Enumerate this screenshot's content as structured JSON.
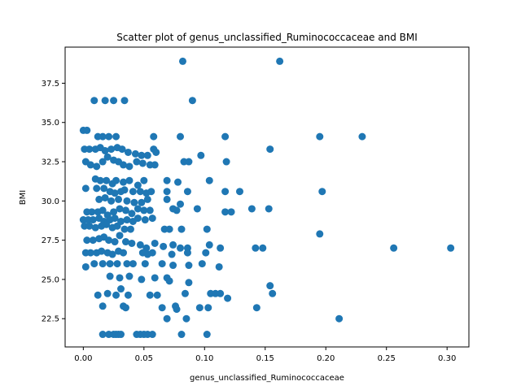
{
  "chart_data": {
    "type": "scatter",
    "title": "Scatter plot of genus_unclassified_Ruminococcaceae and BMI",
    "xlabel": "genus_unclassified_Ruminococcaceae",
    "ylabel": "BMI",
    "xlim": [
      -0.015,
      0.318
    ],
    "ylim": [
      20.7,
      39.8
    ],
    "xticks": [
      0.0,
      0.05,
      0.1,
      0.15,
      0.2,
      0.25,
      0.3
    ],
    "xtick_labels": [
      "0.00",
      "0.05",
      "0.10",
      "0.15",
      "0.20",
      "0.25",
      "0.30"
    ],
    "yticks": [
      22.5,
      25.0,
      27.5,
      30.0,
      32.5,
      35.0,
      37.5
    ],
    "ytick_labels": [
      "22.5",
      "25.0",
      "27.5",
      "30.0",
      "32.5",
      "35.0",
      "37.5"
    ],
    "grid": false,
    "marker_color": "#1f77b4",
    "points": [
      [
        0.082,
        38.9
      ],
      [
        0.162,
        38.9
      ],
      [
        0.009,
        36.4
      ],
      [
        0.018,
        36.4
      ],
      [
        0.025,
        36.4
      ],
      [
        0.034,
        36.4
      ],
      [
        0.09,
        36.4
      ],
      [
        0.0,
        34.5
      ],
      [
        0.003,
        34.5
      ],
      [
        0.012,
        34.1
      ],
      [
        0.016,
        34.1
      ],
      [
        0.021,
        34.1
      ],
      [
        0.027,
        34.1
      ],
      [
        0.058,
        34.1
      ],
      [
        0.08,
        34.1
      ],
      [
        0.117,
        34.1
      ],
      [
        0.195,
        34.1
      ],
      [
        0.23,
        34.1
      ],
      [
        0.001,
        33.3
      ],
      [
        0.005,
        33.3
      ],
      [
        0.01,
        33.3
      ],
      [
        0.014,
        33.4
      ],
      [
        0.018,
        33.2
      ],
      [
        0.023,
        33.3
      ],
      [
        0.028,
        33.4
      ],
      [
        0.032,
        33.3
      ],
      [
        0.037,
        33.1
      ],
      [
        0.043,
        33.0
      ],
      [
        0.048,
        32.9
      ],
      [
        0.053,
        32.9
      ],
      [
        0.058,
        33.3
      ],
      [
        0.06,
        33.1
      ],
      [
        0.097,
        32.9
      ],
      [
        0.154,
        33.3
      ],
      [
        0.002,
        32.5
      ],
      [
        0.006,
        32.3
      ],
      [
        0.011,
        32.2
      ],
      [
        0.016,
        32.5
      ],
      [
        0.02,
        32.8
      ],
      [
        0.025,
        32.6
      ],
      [
        0.029,
        32.5
      ],
      [
        0.033,
        32.3
      ],
      [
        0.038,
        32.2
      ],
      [
        0.044,
        32.5
      ],
      [
        0.049,
        32.4
      ],
      [
        0.055,
        32.3
      ],
      [
        0.059,
        32.3
      ],
      [
        0.083,
        32.5
      ],
      [
        0.087,
        32.5
      ],
      [
        0.118,
        32.5
      ],
      [
        0.01,
        31.4
      ],
      [
        0.014,
        31.3
      ],
      [
        0.019,
        31.3
      ],
      [
        0.024,
        31.1
      ],
      [
        0.027,
        31.3
      ],
      [
        0.033,
        31.2
      ],
      [
        0.038,
        31.3
      ],
      [
        0.045,
        31.0
      ],
      [
        0.05,
        31.3
      ],
      [
        0.069,
        31.3
      ],
      [
        0.078,
        31.2
      ],
      [
        0.104,
        31.3
      ],
      [
        0.002,
        30.8
      ],
      [
        0.011,
        30.8
      ],
      [
        0.017,
        30.8
      ],
      [
        0.022,
        30.6
      ],
      [
        0.026,
        30.5
      ],
      [
        0.031,
        30.6
      ],
      [
        0.034,
        30.7
      ],
      [
        0.041,
        30.6
      ],
      [
        0.047,
        30.6
      ],
      [
        0.052,
        30.5
      ],
      [
        0.056,
        30.6
      ],
      [
        0.069,
        30.6
      ],
      [
        0.086,
        30.6
      ],
      [
        0.117,
        30.6
      ],
      [
        0.129,
        30.6
      ],
      [
        0.197,
        30.6
      ],
      [
        0.013,
        30.1
      ],
      [
        0.018,
        30.2
      ],
      [
        0.023,
        30.0
      ],
      [
        0.029,
        30.1
      ],
      [
        0.036,
        30.0
      ],
      [
        0.042,
        29.9
      ],
      [
        0.048,
        29.9
      ],
      [
        0.053,
        30.1
      ],
      [
        0.069,
        30.1
      ],
      [
        0.08,
        29.8
      ],
      [
        0.003,
        29.3
      ],
      [
        0.007,
        29.3
      ],
      [
        0.012,
        29.3
      ],
      [
        0.016,
        29.4
      ],
      [
        0.02,
        29.1
      ],
      [
        0.025,
        29.3
      ],
      [
        0.03,
        29.5
      ],
      [
        0.035,
        29.4
      ],
      [
        0.04,
        29.2
      ],
      [
        0.045,
        29.5
      ],
      [
        0.05,
        29.4
      ],
      [
        0.055,
        29.4
      ],
      [
        0.074,
        29.5
      ],
      [
        0.077,
        29.4
      ],
      [
        0.094,
        29.5
      ],
      [
        0.117,
        29.3
      ],
      [
        0.122,
        29.3
      ],
      [
        0.139,
        29.5
      ],
      [
        0.153,
        29.5
      ],
      [
        0.0,
        28.8
      ],
      [
        0.004,
        28.8
      ],
      [
        0.008,
        28.8
      ],
      [
        0.013,
        28.9
      ],
      [
        0.017,
        28.7
      ],
      [
        0.022,
        28.8
      ],
      [
        0.026,
        28.9
      ],
      [
        0.031,
        28.7
      ],
      [
        0.036,
        28.8
      ],
      [
        0.041,
        28.7
      ],
      [
        0.045,
        28.9
      ],
      [
        0.051,
        28.8
      ],
      [
        0.057,
        28.9
      ],
      [
        0.001,
        28.4
      ],
      [
        0.005,
        28.4
      ],
      [
        0.01,
        28.3
      ],
      [
        0.015,
        28.4
      ],
      [
        0.019,
        28.5
      ],
      [
        0.024,
        28.3
      ],
      [
        0.028,
        28.4
      ],
      [
        0.034,
        28.2
      ],
      [
        0.039,
        28.2
      ],
      [
        0.067,
        28.2
      ],
      [
        0.071,
        28.2
      ],
      [
        0.081,
        28.2
      ],
      [
        0.102,
        28.2
      ],
      [
        0.195,
        27.9
      ],
      [
        0.003,
        27.5
      ],
      [
        0.008,
        27.5
      ],
      [
        0.013,
        27.6
      ],
      [
        0.017,
        27.7
      ],
      [
        0.021,
        27.5
      ],
      [
        0.026,
        27.4
      ],
      [
        0.03,
        27.8
      ],
      [
        0.035,
        27.4
      ],
      [
        0.04,
        27.3
      ],
      [
        0.047,
        27.2
      ],
      [
        0.052,
        27.0
      ],
      [
        0.059,
        27.3
      ],
      [
        0.066,
        27.1
      ],
      [
        0.074,
        27.2
      ],
      [
        0.08,
        27.0
      ],
      [
        0.086,
        27.0
      ],
      [
        0.104,
        27.2
      ],
      [
        0.113,
        27.0
      ],
      [
        0.142,
        27.0
      ],
      [
        0.148,
        27.0
      ],
      [
        0.256,
        27.0
      ],
      [
        0.303,
        27.0
      ],
      [
        0.002,
        26.7
      ],
      [
        0.006,
        26.7
      ],
      [
        0.011,
        26.7
      ],
      [
        0.015,
        26.8
      ],
      [
        0.02,
        26.7
      ],
      [
        0.024,
        26.6
      ],
      [
        0.029,
        26.8
      ],
      [
        0.033,
        26.7
      ],
      [
        0.049,
        26.7
      ],
      [
        0.053,
        26.6
      ],
      [
        0.057,
        26.7
      ],
      [
        0.073,
        26.6
      ],
      [
        0.086,
        26.7
      ],
      [
        0.101,
        26.7
      ],
      [
        0.002,
        25.8
      ],
      [
        0.009,
        26.0
      ],
      [
        0.016,
        26.0
      ],
      [
        0.022,
        26.0
      ],
      [
        0.028,
        26.0
      ],
      [
        0.036,
        26.0
      ],
      [
        0.041,
        26.0
      ],
      [
        0.051,
        26.0
      ],
      [
        0.065,
        26.0
      ],
      [
        0.074,
        25.9
      ],
      [
        0.087,
        25.9
      ],
      [
        0.098,
        26.0
      ],
      [
        0.112,
        25.8
      ],
      [
        0.022,
        25.2
      ],
      [
        0.03,
        25.1
      ],
      [
        0.038,
        25.2
      ],
      [
        0.048,
        25.0
      ],
      [
        0.059,
        25.1
      ],
      [
        0.069,
        25.1
      ],
      [
        0.071,
        24.9
      ],
      [
        0.087,
        24.8
      ],
      [
        0.154,
        24.6
      ],
      [
        0.012,
        24.0
      ],
      [
        0.02,
        24.1
      ],
      [
        0.027,
        24.0
      ],
      [
        0.031,
        24.4
      ],
      [
        0.037,
        24.0
      ],
      [
        0.055,
        24.0
      ],
      [
        0.061,
        24.0
      ],
      [
        0.084,
        24.1
      ],
      [
        0.105,
        24.1
      ],
      [
        0.109,
        24.1
      ],
      [
        0.113,
        24.1
      ],
      [
        0.119,
        23.8
      ],
      [
        0.156,
        24.1
      ],
      [
        0.016,
        23.3
      ],
      [
        0.033,
        23.3
      ],
      [
        0.035,
        23.2
      ],
      [
        0.065,
        23.2
      ],
      [
        0.076,
        23.3
      ],
      [
        0.077,
        23.1
      ],
      [
        0.096,
        23.2
      ],
      [
        0.103,
        23.2
      ],
      [
        0.143,
        23.2
      ],
      [
        0.069,
        22.5
      ],
      [
        0.085,
        22.5
      ],
      [
        0.211,
        22.5
      ],
      [
        0.016,
        21.5
      ],
      [
        0.021,
        21.5
      ],
      [
        0.025,
        21.5
      ],
      [
        0.027,
        21.5
      ],
      [
        0.029,
        21.5
      ],
      [
        0.031,
        21.5
      ],
      [
        0.044,
        21.5
      ],
      [
        0.047,
        21.5
      ],
      [
        0.05,
        21.5
      ],
      [
        0.053,
        21.5
      ],
      [
        0.057,
        21.5
      ],
      [
        0.081,
        21.5
      ],
      [
        0.102,
        21.5
      ]
    ]
  }
}
